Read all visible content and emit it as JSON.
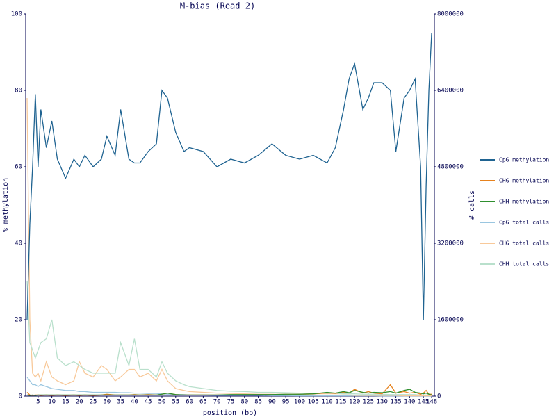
{
  "chart_data": {
    "type": "line",
    "title": "M-bias (Read 2)",
    "xlabel": "position (bp)",
    "ylabel": "% methylation",
    "y2label": "# calls",
    "legend": "right",
    "x": [
      1,
      2,
      3,
      4,
      5,
      6,
      8,
      10,
      12,
      15,
      18,
      20,
      22,
      25,
      28,
      30,
      33,
      35,
      38,
      40,
      42,
      45,
      48,
      50,
      52,
      55,
      58,
      60,
      65,
      70,
      75,
      80,
      85,
      90,
      95,
      100,
      105,
      110,
      113,
      116,
      118,
      120,
      123,
      125,
      127,
      130,
      133,
      135,
      138,
      140,
      142,
      144,
      145,
      146,
      147,
      148
    ],
    "xlim": [
      0.5,
      149
    ],
    "xticks": [
      5,
      10,
      15,
      20,
      25,
      30,
      35,
      40,
      45,
      50,
      55,
      60,
      65,
      70,
      75,
      80,
      85,
      90,
      95,
      100,
      105,
      110,
      115,
      120,
      125,
      130,
      135,
      140,
      145,
      148
    ],
    "ylim": [
      0,
      100
    ],
    "yticks": [
      0,
      20,
      40,
      60,
      80,
      100
    ],
    "y2lim": [
      0,
      8000000
    ],
    "y2ticks": [
      0,
      1600000,
      3200000,
      4800000,
      6400000,
      8000000
    ],
    "series": [
      {
        "name": "CpG methylation",
        "color": "#1f6391",
        "values": [
          20,
          45,
          60,
          79,
          60,
          75,
          65,
          72,
          62,
          57,
          62,
          60,
          63,
          60,
          62,
          68,
          63,
          75,
          62,
          61,
          61,
          64,
          66,
          80,
          78,
          69,
          64,
          65,
          64,
          60,
          62,
          61,
          63,
          66,
          63,
          62,
          63,
          61,
          65,
          75,
          83,
          87,
          75,
          78,
          82,
          82,
          80,
          64,
          78,
          80,
          83,
          60,
          20,
          55,
          80,
          95
        ]
      },
      {
        "name": "CHG methylation",
        "color": "#e6821e",
        "values": [
          1,
          0.3,
          0.2,
          0.3,
          0.3,
          0.2,
          0.3,
          0.2,
          0.3,
          0.2,
          0.3,
          0.2,
          0.3,
          0.2,
          0.3,
          0.5,
          0.3,
          0.3,
          0.3,
          0.4,
          0.3,
          0.4,
          0.3,
          0.5,
          0.8,
          0.4,
          0.3,
          0.3,
          0.3,
          0.3,
          0.3,
          0.3,
          0.4,
          0.4,
          0.5,
          0.5,
          0.6,
          0.8,
          0.7,
          1,
          0.8,
          1.8,
          0.8,
          1.2,
          0.8,
          0.6,
          3,
          0.8,
          1.2,
          0.8,
          1,
          0.5,
          0.8,
          1.5,
          0.5,
          0.5
        ]
      },
      {
        "name": "CHH methylation",
        "color": "#2f8f2f",
        "values": [
          0.3,
          0.2,
          0.3,
          0.2,
          0.3,
          0.3,
          0.3,
          0.3,
          0.3,
          0.3,
          0.3,
          0.3,
          0.3,
          0.3,
          0.3,
          0.3,
          0.3,
          0.3,
          0.3,
          0.3,
          0.3,
          0.3,
          0.3,
          0.5,
          0.8,
          0.4,
          0.3,
          0.3,
          0.3,
          0.3,
          0.4,
          0.4,
          0.4,
          0.4,
          0.5,
          0.5,
          0.6,
          1,
          0.8,
          1.2,
          0.9,
          1.5,
          1,
          0.8,
          1,
          0.9,
          1.2,
          0.8,
          1.5,
          1.8,
          1,
          0.8,
          0.6,
          0.8,
          0.5,
          0.3
        ]
      },
      {
        "name": "CpG total calls",
        "color": "#9ac6e0",
        "axis": "y2",
        "values": [
          400000,
          320000,
          240000,
          240000,
          200000,
          240000,
          200000,
          160000,
          144000,
          120000,
          120000,
          96000,
          96000,
          80000,
          80000,
          80000,
          80000,
          72000,
          72000,
          64000,
          64000,
          56000,
          56000,
          48000,
          40000,
          32000,
          32000,
          24000,
          24000,
          16000,
          16000,
          16000,
          16000,
          12000,
          12000,
          8000,
          8000,
          8000,
          8000,
          8000,
          8000,
          8000,
          8000,
          8000,
          8000,
          4000,
          4000,
          4000,
          4000,
          4000,
          4000,
          4000,
          4000,
          4000,
          4000,
          4000
        ]
      },
      {
        "name": "CHG total calls",
        "color": "#f8c99a",
        "axis": "y2",
        "values": [
          6240000,
          1600000,
          480000,
          400000,
          480000,
          320000,
          720000,
          400000,
          320000,
          240000,
          320000,
          720000,
          480000,
          400000,
          640000,
          560000,
          320000,
          400000,
          560000,
          560000,
          400000,
          480000,
          320000,
          560000,
          320000,
          160000,
          120000,
          96000,
          80000,
          64000,
          56000,
          48000,
          40000,
          40000,
          32000,
          32000,
          24000,
          24000,
          24000,
          24000,
          24000,
          16000,
          16000,
          16000,
          16000,
          16000,
          16000,
          16000,
          8000,
          8000,
          8000,
          8000,
          8000,
          8000,
          8000,
          8000
        ]
      },
      {
        "name": "CHH total calls",
        "color": "#b9e0cc",
        "axis": "y2",
        "values": [
          2400000,
          1120000,
          960000,
          800000,
          960000,
          1120000,
          1200000,
          1600000,
          800000,
          640000,
          720000,
          640000,
          560000,
          480000,
          480000,
          480000,
          480000,
          1120000,
          640000,
          1200000,
          560000,
          560000,
          400000,
          720000,
          480000,
          320000,
          240000,
          200000,
          160000,
          120000,
          104000,
          96000,
          80000,
          80000,
          72000,
          64000,
          64000,
          56000,
          56000,
          48000,
          48000,
          48000,
          40000,
          40000,
          40000,
          40000,
          32000,
          32000,
          32000,
          32000,
          32000,
          24000,
          24000,
          24000,
          24000,
          24000
        ]
      }
    ]
  }
}
